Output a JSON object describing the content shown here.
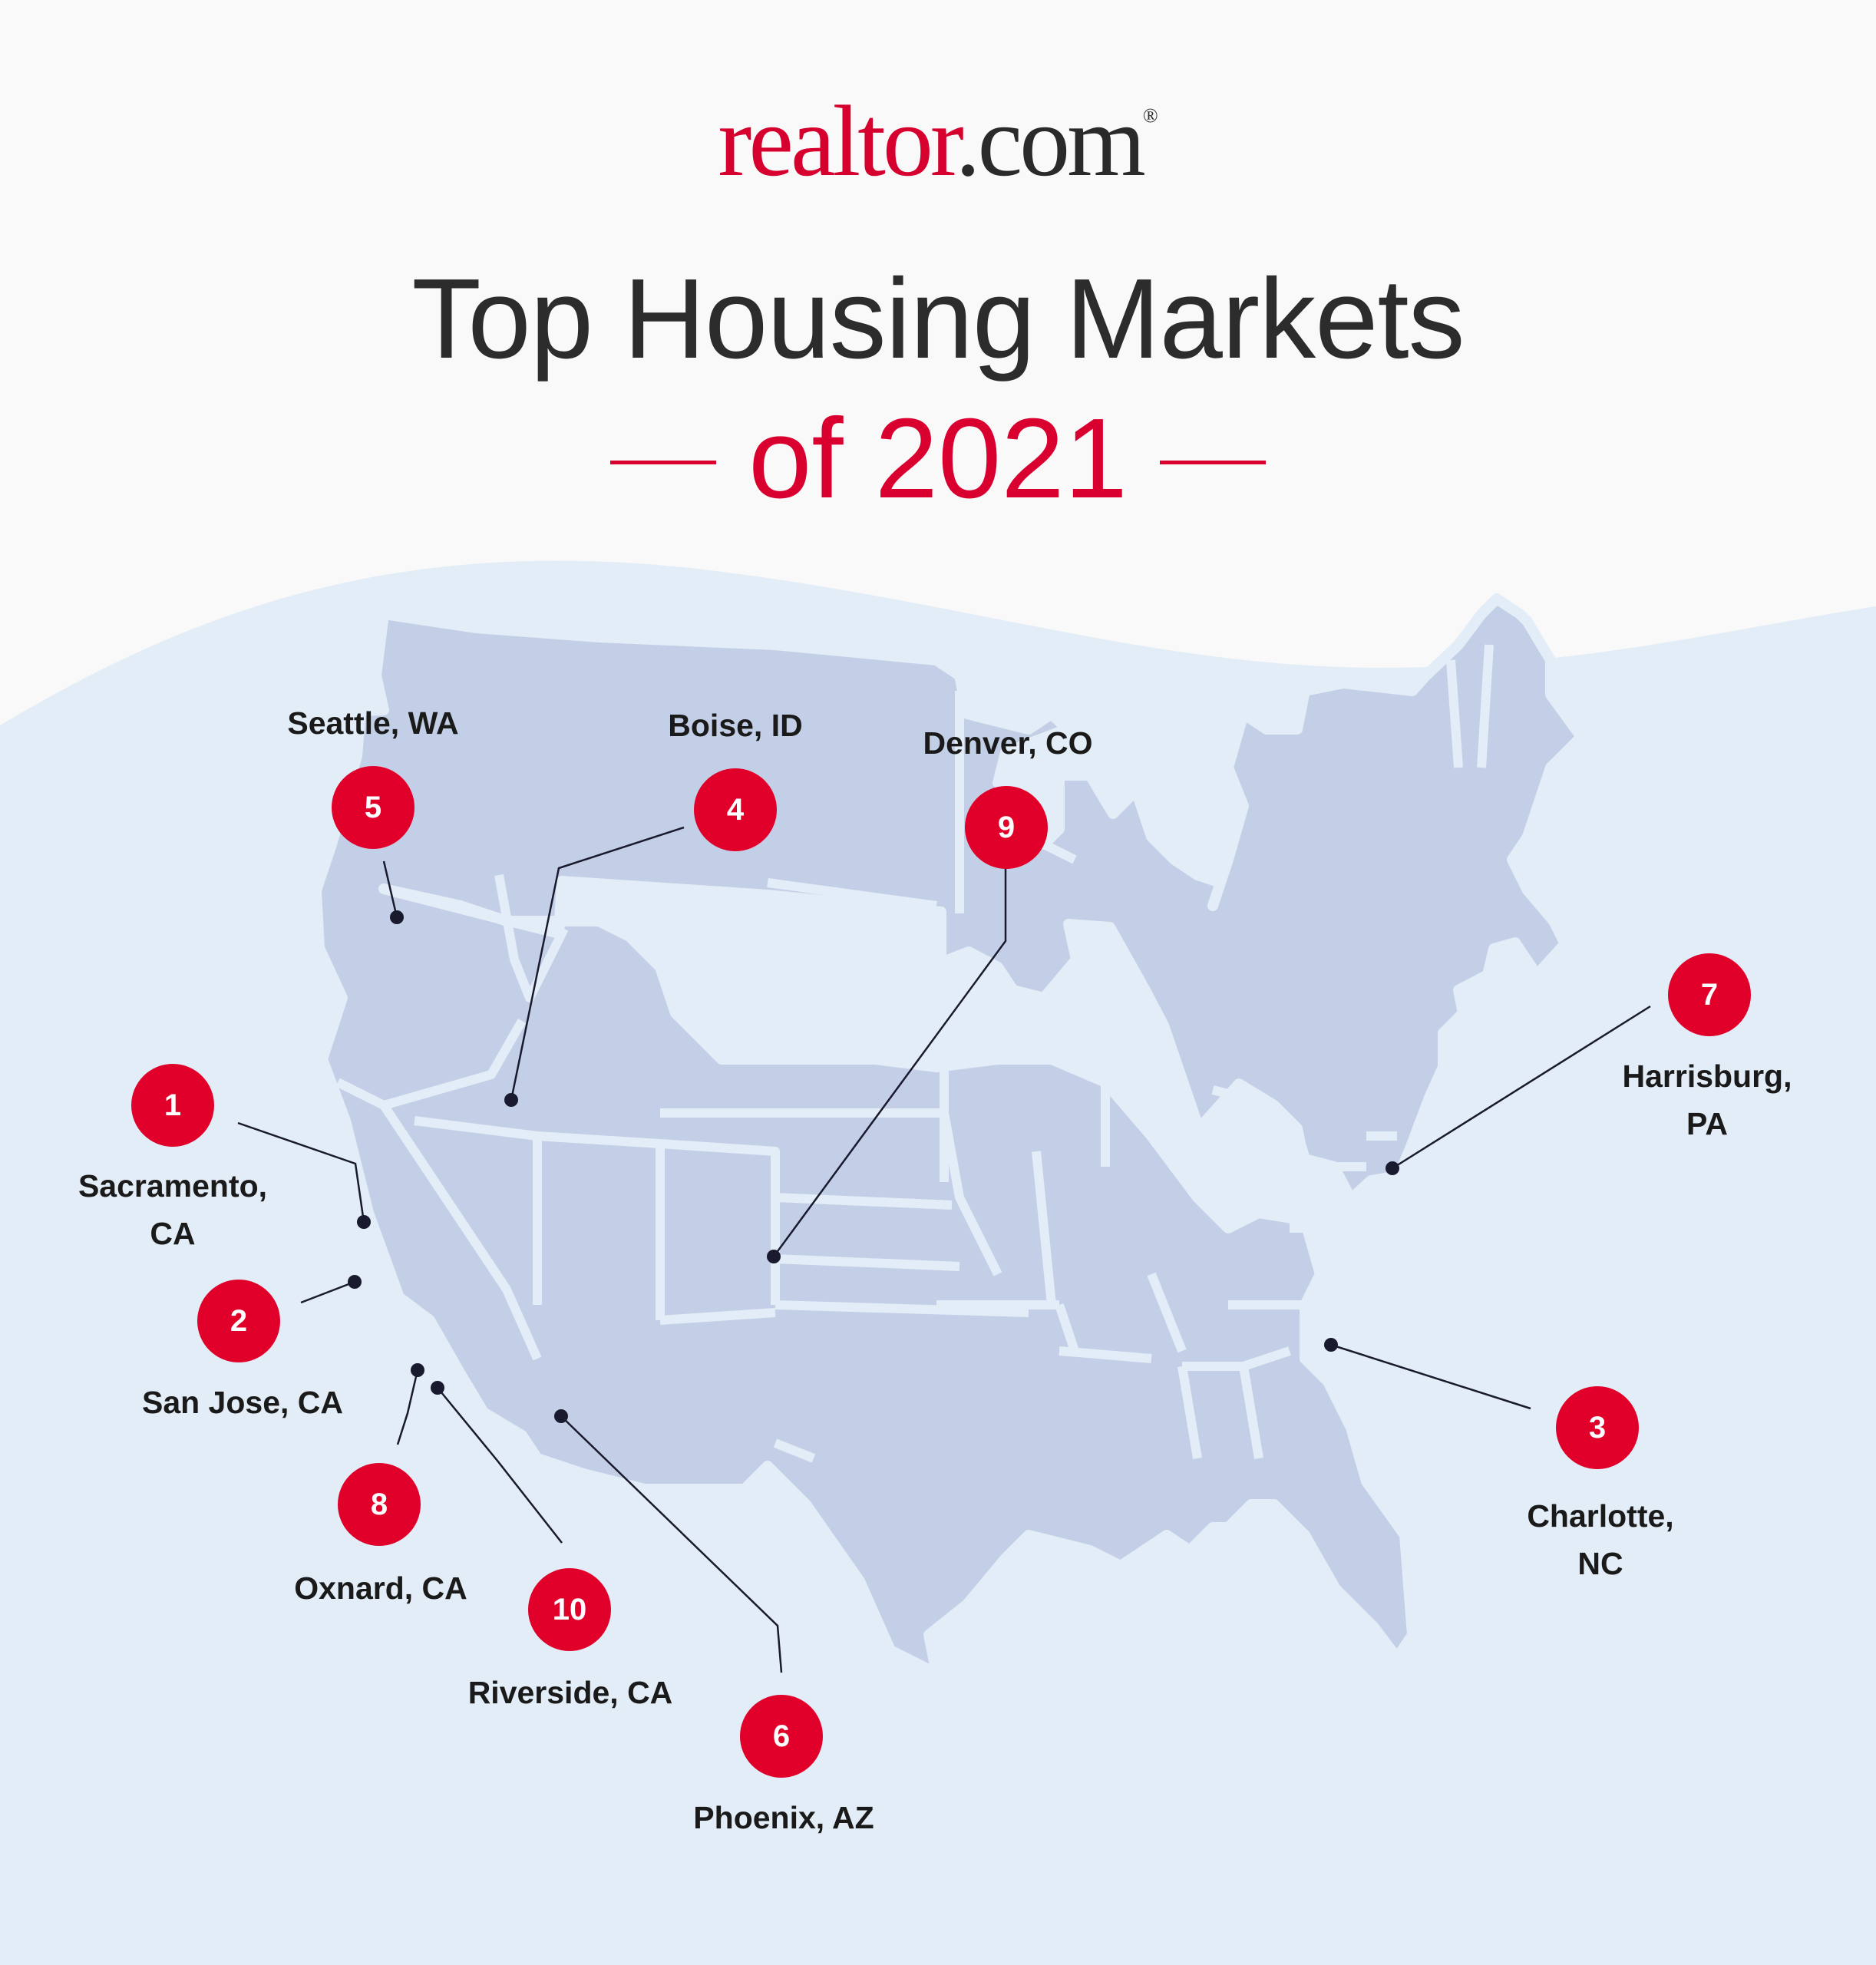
{
  "logo": {
    "brand_red": "realtor",
    "brand_rest": ".com",
    "registered": "®"
  },
  "title": "Top Housing Markets",
  "subtitle": "of 2021",
  "colors": {
    "accent_red": "#e0002a",
    "map_fill": "#c3cfe6",
    "map_background": "#e3edf7",
    "leader_line": "#1a1a2e"
  },
  "markets": [
    {
      "rank": "1",
      "city": "Sacramento,\nCA"
    },
    {
      "rank": "2",
      "city": "San Jose, CA"
    },
    {
      "rank": "3",
      "city": "Charlotte,\nNC"
    },
    {
      "rank": "4",
      "city": "Boise, ID"
    },
    {
      "rank": "5",
      "city": "Seattle, WA"
    },
    {
      "rank": "6",
      "city": "Phoenix, AZ"
    },
    {
      "rank": "7",
      "city": "Harrisburg,\nPA"
    },
    {
      "rank": "8",
      "city": "Oxnard, CA"
    },
    {
      "rank": "9",
      "city": "Denver, CO"
    },
    {
      "rank": "10",
      "city": "Riverside, CA"
    }
  ]
}
